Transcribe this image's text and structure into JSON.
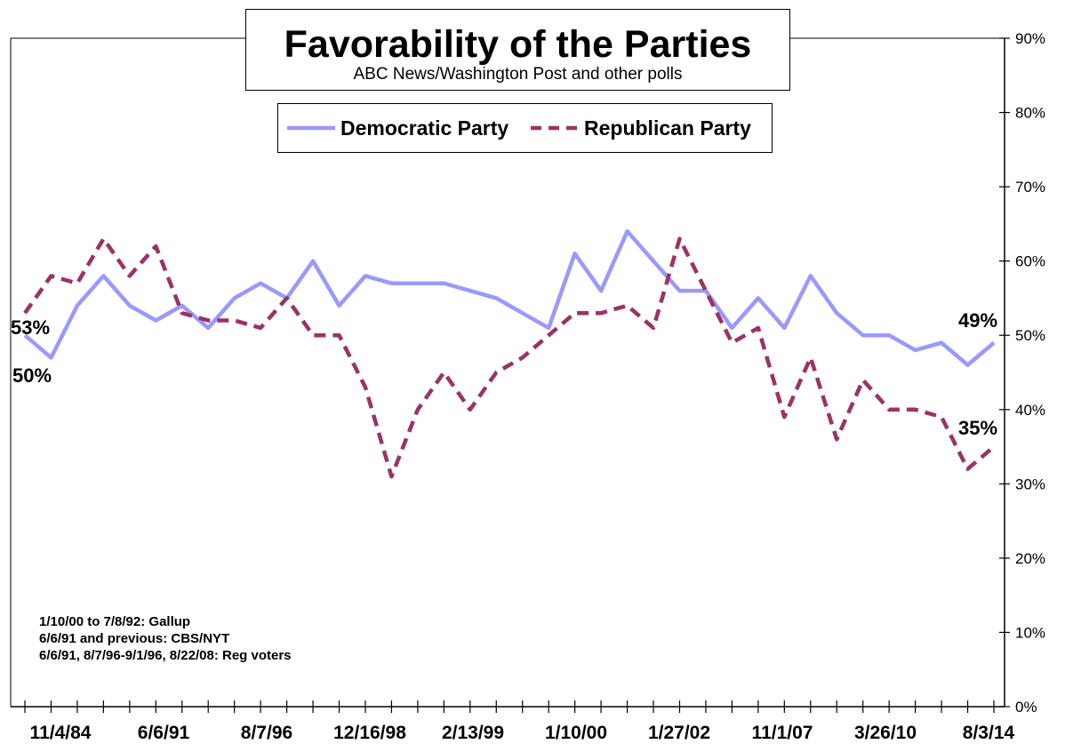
{
  "chart_data": {
    "type": "line",
    "title": "Favorability of the Parties",
    "subtitle": "ABC News/Washington  Post and other polls",
    "x_tick_labels": [
      "11/4/84",
      "6/6/91",
      "8/7/96",
      "12/16/98",
      "2/13/99",
      "1/10/00",
      "1/27/02",
      "11/1/07",
      "3/26/10",
      "8/3/14"
    ],
    "y_tick_labels": [
      "0%",
      "10%",
      "20%",
      "30%",
      "40%",
      "50%",
      "60%",
      "70%",
      "80%",
      "90%"
    ],
    "ylim": [
      0,
      90
    ],
    "y_axis_side": "right",
    "grid": false,
    "legend_placement": "top-center",
    "series": [
      {
        "name": "Democratic Party",
        "color": "#9999ff",
        "line_style": "solid",
        "values": [
          50,
          47,
          54,
          58,
          54,
          52,
          54,
          51,
          55,
          57,
          55,
          60,
          54,
          58,
          57,
          57,
          57,
          56,
          55,
          53,
          51,
          61,
          56,
          64,
          60,
          56,
          56,
          51,
          55,
          51,
          58,
          53,
          50,
          50,
          48,
          49,
          46,
          49
        ]
      },
      {
        "name": "Republican Party",
        "color": "#993366",
        "line_style": "dashed",
        "values": [
          53,
          58,
          57,
          63,
          58,
          62,
          53,
          52,
          52,
          51,
          55,
          50,
          50,
          43,
          31,
          40,
          45,
          40,
          45,
          47,
          50,
          53,
          53,
          54,
          51,
          63,
          56,
          49,
          51,
          39,
          47,
          36,
          44,
          40,
          40,
          39,
          32,
          35
        ]
      }
    ],
    "annotations": {
      "rep_start": "53%",
      "dem_start": "50%",
      "dem_end": "49%",
      "rep_end": "35%"
    },
    "notes": [
      "1/10/00 to 7/8/92:  Gallup",
      "6/6/91 and previous: CBS/NYT",
      "6/6/91, 8/7/96-9/1/96, 8/22/08: Reg voters"
    ]
  }
}
